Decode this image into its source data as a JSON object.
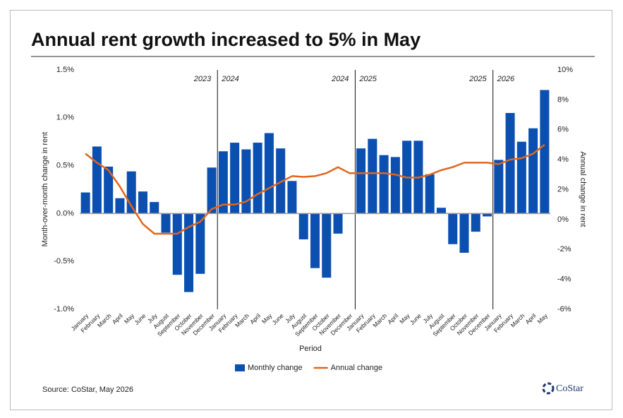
{
  "chart_data": {
    "type": "bar_line",
    "title": "Annual rent growth increased to 5% in May",
    "x_label": "Period",
    "y_label": "Month-over-month change in rent",
    "y2_label": "Annual change in rent",
    "source": "Source: CoStar, May 2026",
    "logo": "CoStar",
    "period_labels": [
      [
        "2023",
        "2024"
      ],
      [
        "2024",
        "2025"
      ],
      [
        "2025",
        "2026"
      ]
    ],
    "categories": [
      "January",
      "February",
      "March",
      "April",
      "May",
      "June",
      "July",
      "August",
      "September",
      "October",
      "November",
      "December",
      "January",
      "February",
      "March",
      "April",
      "May",
      "June",
      "July",
      "August",
      "September",
      "October",
      "November",
      "December",
      "January",
      "February",
      "March",
      "April",
      "May",
      "June",
      "July",
      "August",
      "September",
      "October",
      "November",
      "December",
      "January",
      "February",
      "March",
      "April",
      "May"
    ],
    "series": [
      {
        "name": "Monthly change",
        "color": "#0b4fb0",
        "kind": "bar",
        "values": [
          0.22,
          0.7,
          0.49,
          0.16,
          0.44,
          0.23,
          0.12,
          -0.2,
          -0.64,
          -0.82,
          -0.63,
          0.48,
          0.65,
          0.74,
          0.67,
          0.74,
          0.84,
          0.68,
          0.34,
          -0.27,
          -0.57,
          -0.67,
          -0.21,
          0,
          0.68,
          0.78,
          0.61,
          0.59,
          0.76,
          0.76,
          0.41,
          0.06,
          -0.32,
          -0.41,
          -0.19,
          -0.03,
          0.56,
          1.05,
          0.75,
          0.89,
          1.29
        ]
      },
      {
        "name": "Annual change",
        "color": "#e0661e",
        "kind": "line",
        "axis": "y2",
        "values": [
          4.4,
          3.8,
          3.3,
          2.2,
          0.9,
          -0.3,
          -0.95,
          -0.95,
          -0.95,
          -0.5,
          -0.15,
          0.7,
          1.0,
          1.0,
          1.2,
          1.7,
          2.1,
          2.5,
          2.9,
          2.85,
          2.9,
          3.1,
          3.5,
          3.1,
          3.1,
          3.1,
          3.1,
          3.0,
          2.8,
          2.8,
          3.0,
          3.3,
          3.5,
          3.8,
          3.8,
          3.8,
          3.7,
          4.0,
          4.1,
          4.4,
          5.0
        ]
      }
    ],
    "ylim": [
      -1.0,
      1.5
    ],
    "yticks": [
      {
        "value": -1.0,
        "label": "-1.0%"
      },
      {
        "value": -0.5,
        "label": "-0.5%"
      },
      {
        "value": 0,
        "label": "0.0%"
      },
      {
        "value": 0.5,
        "label": "0.5%"
      },
      {
        "value": 1.0,
        "label": "1.0%"
      },
      {
        "value": 1.5,
        "label": "1.5%"
      }
    ],
    "y2lim": [
      -6,
      10
    ],
    "y2ticks": [
      {
        "value": -6,
        "label": "-6%"
      },
      {
        "value": -4,
        "label": "-4%"
      },
      {
        "value": -2,
        "label": "-2%"
      },
      {
        "value": 0,
        "label": "0%"
      },
      {
        "value": 2,
        "label": "2%"
      },
      {
        "value": 4,
        "label": "4%"
      },
      {
        "value": 6,
        "label": "6%"
      },
      {
        "value": 8,
        "label": "8%"
      },
      {
        "value": 10,
        "label": "10%"
      }
    ]
  }
}
